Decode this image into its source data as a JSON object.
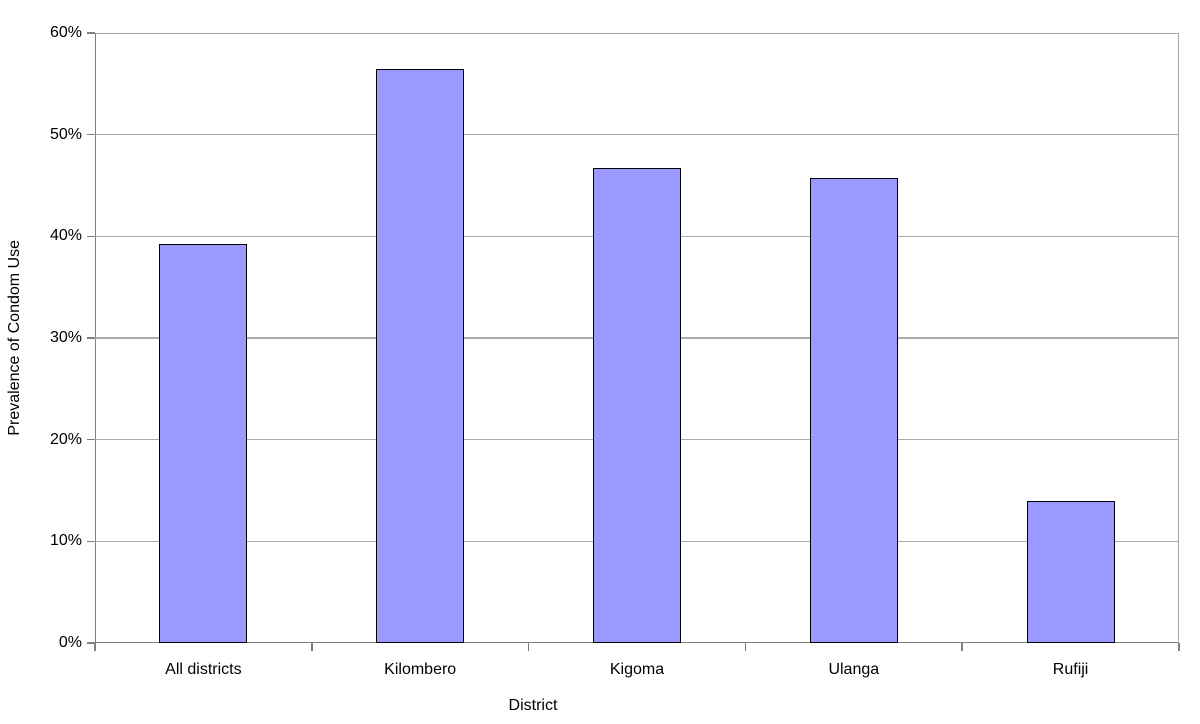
{
  "chart_data": {
    "type": "bar",
    "title": "",
    "categories": [
      "All districts",
      "Kilombero",
      "Kigoma",
      "Ulanga",
      "Rufiji"
    ],
    "values": [
      39.2,
      56.5,
      46.7,
      45.7,
      14.0
    ],
    "xlabel": "District",
    "ylabel": "Prevalence of Condom Use",
    "ylim": [
      0,
      60
    ],
    "ytick_step": 10,
    "ytick_labels": [
      "0%",
      "10%",
      "20%",
      "30%",
      "40%",
      "50%",
      "60%"
    ],
    "grid": true,
    "legend_position": "none",
    "colors": {
      "bar_fill": "#9999ff",
      "bar_border": "#000000",
      "gridline": "#ababab",
      "axis_line": "#808080",
      "plot_border": "#a6a6a6",
      "background": "#ffffff",
      "text": "#000000"
    }
  }
}
